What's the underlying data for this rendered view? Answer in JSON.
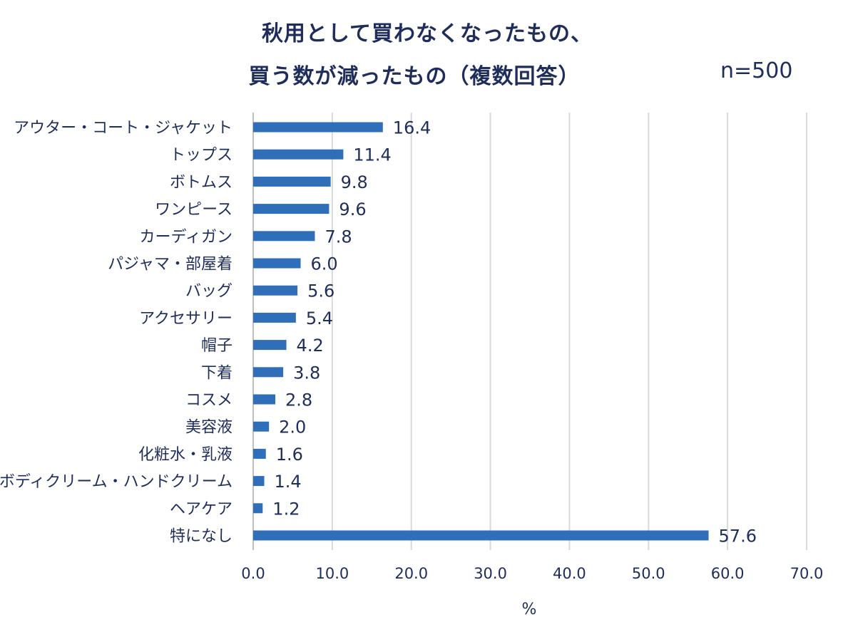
{
  "chart_data": {
    "type": "bar",
    "orientation": "horizontal",
    "title_lines": [
      "秋用として買わなくなったもの、",
      "買う数が減ったもの（複数回答）"
    ],
    "sample_size": "n=500",
    "categories": [
      "アウター・コート・ジャケット",
      "トップス",
      "ボトムス",
      "ワンピース",
      "カーディガン",
      "パジャマ・部屋着",
      "バッグ",
      "アクセサリー",
      "帽子",
      "下着",
      "コスメ",
      "美容液",
      "化粧水・乳液",
      "ボディクリーム・ハンドクリーム",
      "ヘアケア",
      "特になし"
    ],
    "values": [
      16.4,
      11.4,
      9.8,
      9.6,
      7.8,
      6.0,
      5.6,
      5.4,
      4.2,
      3.8,
      2.8,
      2.0,
      1.6,
      1.4,
      1.2,
      57.6
    ],
    "value_labels": [
      "16.4",
      "11.4",
      "9.8",
      "9.6",
      "7.8",
      "6.0",
      "5.6",
      "5.4",
      "4.2",
      "3.8",
      "2.8",
      "2.0",
      "1.6",
      "1.4",
      "1.2",
      "57.6"
    ],
    "x_ticks": [
      0,
      10,
      20,
      30,
      40,
      50,
      60,
      70
    ],
    "x_tick_labels": [
      "0.0",
      "10.0",
      "20.0",
      "30.0",
      "40.0",
      "50.0",
      "60.0",
      "70.0"
    ],
    "xlabel": "%",
    "xlim": [
      0,
      70
    ],
    "grid": "vertical",
    "legend": "none",
    "bar_color": "#2f6fba",
    "grid_color": "#d9d9d9",
    "text_color": "#1f2d5c"
  }
}
